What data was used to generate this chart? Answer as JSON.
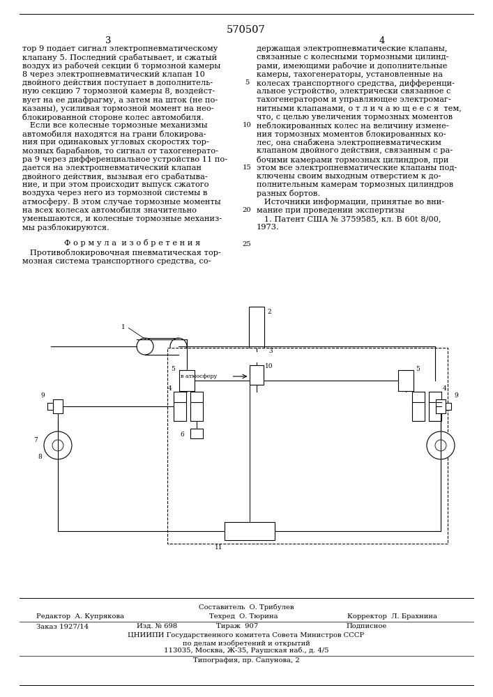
{
  "patent_number": "570507",
  "page_left": "3",
  "page_right": "4",
  "col_left_lines": [
    "тор 9 подает сигнал электропневматическому",
    "клапану 5. Последний срабатывает, и сжатый",
    "воздух из рабочей секции 6 тормозной камеры",
    "8 через электропневматический клапан 10",
    "двойного действия поступает в дополнитель-",
    "ную секцию 7 тормозной камеры 8, воздейст-",
    "вует на ее диафрагму, а затем на шток (не по-",
    "казаны), усиливая тормозной момент на нео-",
    "блокированной стороне колес автомобиля.",
    "   Если все колесные тормозные механизмы",
    "автомобиля находятся на грани блокирова-",
    "ния при одинаковых угловых скоростях тор-",
    "мозных барабанов, то сигнал от тахогенерато-",
    "ра 9 через дифференциальное устройство 11 по-",
    "дается на электропневматический клапан",
    "двойного действия, вызывая его срабатыва-",
    "ние, и при этом происходит выпуск сжатого",
    "воздуха через него из тормозной системы в",
    "атмосферу. В этом случае тормозные моменты",
    "на всех колесах автомобиля значительно",
    "уменьшаются, и колесные тормозные механиз-",
    "мы разблокируются."
  ],
  "formula_title": "Ф о р м у л а  и з о б р е т е н и я",
  "formula_lines": [
    "   Противоблокировочная пневматическая тор-",
    "мозная система транспортного средства, со-"
  ],
  "col_right_lines": [
    "держащая электропневматические клапаны,",
    "связанные с колесными тормозными цилинд-",
    "рами, имеющими рабочие и дополнительные",
    "камеры, тахогенераторы, установленные на",
    "колесах транспортного средства, дифференци-",
    "альное устройство, электрически связанное с",
    "тахогенератором и управляющее электромаг-",
    "нитными клапанами, о т л и ч а ю щ е е с я  тем,",
    "что, с целью увеличения тормозных моментов",
    "неблокированных колес на величину измене-",
    "ния тормозных моментов блокированных ко-",
    "лес, она снабжена электропневматическим",
    "клапаном двойного действия, связанным с ра-",
    "бочими камерами тормозных цилиндров, при",
    "этом все электропневматические клапаны под-",
    "ключены своим выходным отверстием к до-",
    "полнительным камерам тормозных цилиндров",
    "разных бортов.",
    "   Источники информации, принятые во вни-",
    "мание при проведении экспертизы",
    "   1. Патент США № 3759585, кл. В 60t 8/00,",
    "1973."
  ],
  "line_numbers": [
    {
      "num": "5",
      "row": 4
    },
    {
      "num": "10",
      "row": 9
    },
    {
      "num": "15",
      "row": 14
    },
    {
      "num": "20",
      "row": 19
    },
    {
      "num": "25",
      "row": 23
    }
  ],
  "footer_sestavitel": "Составитель  О. Трибулев",
  "footer_redaktor": "Редактор  А. Купрякова",
  "footer_tekhred": "Техред  О. Тюрина",
  "footer_korrektor": "Корректор  Л. Брахнина",
  "footer_zakaz": "Заказ 1927/14",
  "footer_izd": "Изд. № 698",
  "footer_tirazh": "Тираж  907",
  "footer_podpisnoe": "Подписное",
  "footer_tsniиpi": "ЦНИИПИ Государственного комитета Совета Министров СССР",
  "footer_po": "по делам изобретений и открытий",
  "footer_address": "113035, Москва, Ж-35, Раушская наб., д. 4/5",
  "footer_tipografia": "Типография, пр. Сапунова, 2",
  "bg_color": "#ffffff",
  "text_color": "#000000",
  "font_size_main": 8.2,
  "font_size_patent": 10.5,
  "font_size_page": 9.5,
  "font_size_footer": 7.2,
  "font_size_diag": 6.5
}
